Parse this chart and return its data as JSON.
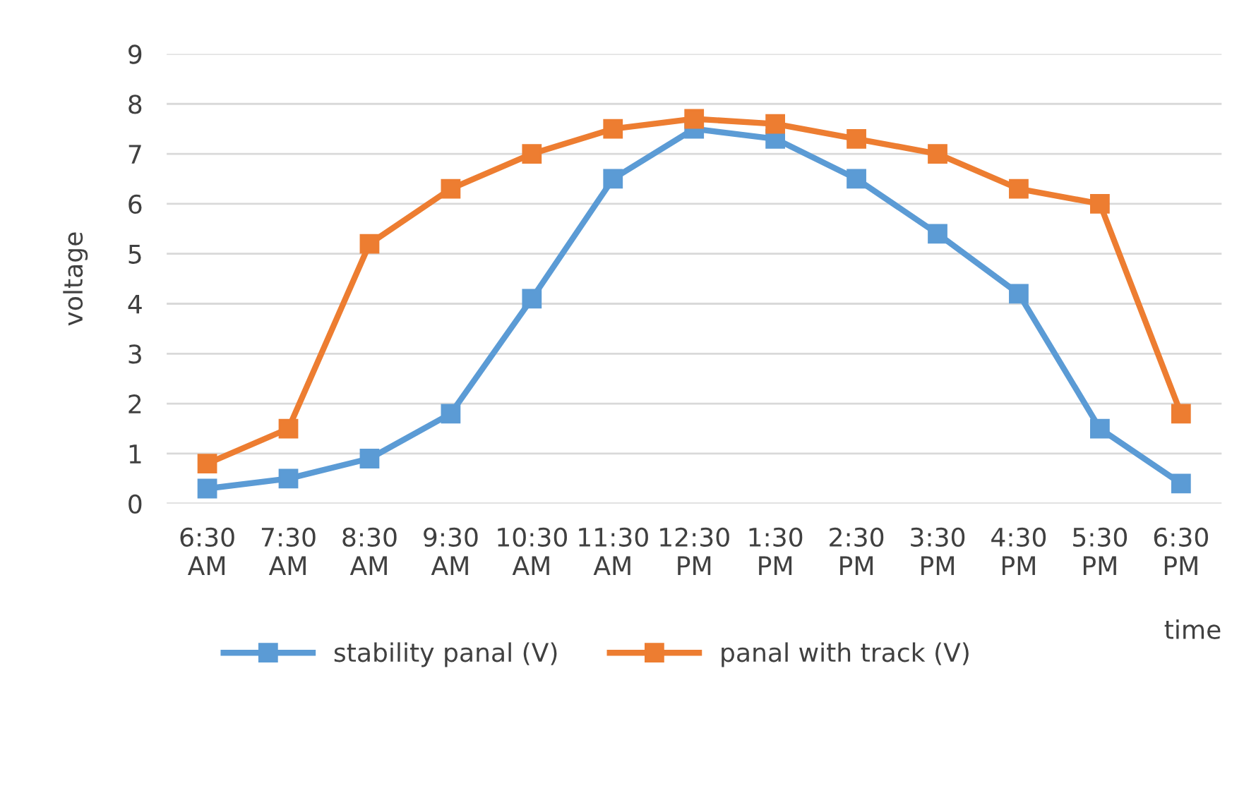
{
  "chart_data": {
    "type": "line",
    "xlabel": "time",
    "ylabel": "voltage",
    "categories": [
      "6:30 AM",
      "7:30 AM",
      "8:30 AM",
      "9:30 AM",
      "10:30 AM",
      "11:30 AM",
      "12:30 PM",
      "1:30 PM",
      "2:30 PM",
      "3:30 PM",
      "4:30 PM",
      "5:30 PM",
      "6:30 PM"
    ],
    "series": [
      {
        "name": "stability panal (V)",
        "color": "#5b9bd5",
        "values": [
          0.3,
          0.5,
          0.9,
          1.8,
          4.1,
          6.5,
          7.5,
          7.3,
          6.5,
          5.4,
          4.2,
          1.5,
          0.4
        ]
      },
      {
        "name": "panal with track (V)",
        "color": "#ed7d31",
        "values": [
          0.8,
          1.5,
          5.2,
          6.3,
          7.0,
          7.5,
          7.7,
          7.6,
          7.3,
          7.0,
          6.3,
          6.0,
          1.8
        ]
      }
    ],
    "ylim": [
      0,
      9
    ],
    "yticks": [
      0,
      1,
      2,
      3,
      4,
      5,
      6,
      7,
      8,
      9
    ],
    "grid": "y",
    "legend": "bottom",
    "marker": "square",
    "line_style": "solid"
  }
}
